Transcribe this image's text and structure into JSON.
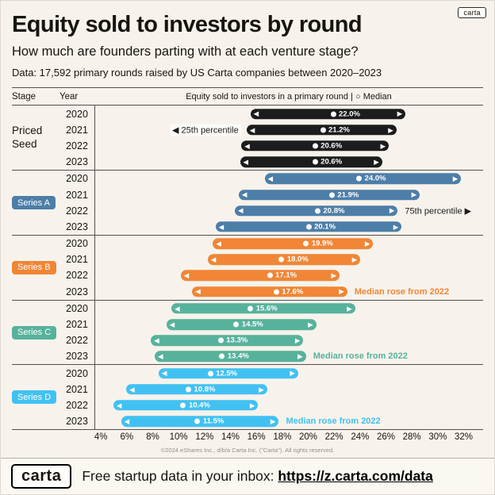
{
  "page": {
    "badge": "carta",
    "title": "Equity sold to investors by round",
    "subtitle": "How much are founders parting with at each venture stage?",
    "data_note": "Data: 17,592 primary rounds raised by US Carta companies between 2020–2023",
    "copyright": "©2024 eShares Inc., d/b/a Carta Inc. (\"Carta\"). All rights reserved.",
    "footer": {
      "logo": "carta",
      "prompt": "Free startup data in your inbox:",
      "link": "https://z.carta.com/data"
    }
  },
  "chart_data": {
    "type": "range-bar",
    "title": "Equity sold to investors by round",
    "subtitle": "How much are founders parting with at each venture stage?",
    "source": "Data: 17,592 primary rounds raised by US Carta companies between 2020–2023",
    "column_headers": {
      "stage": "Stage",
      "year": "Year",
      "legend": "Equity sold to investors in a primary round | ○ Median"
    },
    "x_axis": {
      "unit": "%",
      "min": 3.5,
      "max": 33.5,
      "ticks": [
        4,
        6,
        8,
        10,
        12,
        14,
        16,
        18,
        20,
        22,
        24,
        26,
        28,
        30,
        32
      ]
    },
    "groups": [
      {
        "stage": "Priced Seed",
        "pill": false,
        "color": "#1c1c1c",
        "rows": [
          {
            "year": "2020",
            "p25": 15.5,
            "p75": 27.5,
            "median": 22.0,
            "median_label": "22.0%"
          },
          {
            "year": "2021",
            "p25": 15.2,
            "p75": 26.8,
            "median": 21.2,
            "median_label": "21.2%",
            "note": {
              "text": "◀ 25th percentile",
              "side": "left",
              "bold": false,
              "color": "#1c1c1c"
            }
          },
          {
            "year": "2022",
            "p25": 14.8,
            "p75": 26.2,
            "median": 20.6,
            "median_label": "20.6%"
          },
          {
            "year": "2023",
            "p25": 14.7,
            "p75": 25.7,
            "median": 20.6,
            "median_label": "20.6%"
          }
        ]
      },
      {
        "stage": "Series A",
        "pill": true,
        "color": "#4d7ea8",
        "rows": [
          {
            "year": "2020",
            "p25": 16.6,
            "p75": 31.8,
            "median": 24.0,
            "median_label": "24.0%"
          },
          {
            "year": "2021",
            "p25": 14.6,
            "p75": 28.6,
            "median": 21.9,
            "median_label": "21.9%"
          },
          {
            "year": "2022",
            "p25": 14.3,
            "p75": 26.9,
            "median": 20.8,
            "median_label": "20.8%",
            "note": {
              "text": "75th percentile ▶",
              "side": "right",
              "bold": false,
              "color": "#1c1c1c"
            }
          },
          {
            "year": "2023",
            "p25": 12.8,
            "p75": 27.2,
            "median": 20.1,
            "median_label": "20.1%"
          }
        ]
      },
      {
        "stage": "Series B",
        "pill": true,
        "color": "#f08636",
        "rows": [
          {
            "year": "2020",
            "p25": 12.6,
            "p75": 25.0,
            "median": 19.9,
            "median_label": "19.9%"
          },
          {
            "year": "2021",
            "p25": 12.2,
            "p75": 24.0,
            "median": 18.0,
            "median_label": "18.0%"
          },
          {
            "year": "2022",
            "p25": 10.1,
            "p75": 22.4,
            "median": 17.1,
            "median_label": "17.1%"
          },
          {
            "year": "2023",
            "p25": 11.0,
            "p75": 23.0,
            "median": 17.6,
            "median_label": "17.6%",
            "note": {
              "text": "Median rose from 2022",
              "side": "right",
              "bold": true,
              "color": "#f08636"
            }
          }
        ]
      },
      {
        "stage": "Series C",
        "pill": true,
        "color": "#57b29c",
        "rows": [
          {
            "year": "2020",
            "p25": 9.4,
            "p75": 23.6,
            "median": 15.6,
            "median_label": "15.6%"
          },
          {
            "year": "2021",
            "p25": 9.0,
            "p75": 20.6,
            "median": 14.5,
            "median_label": "14.5%"
          },
          {
            "year": "2022",
            "p25": 7.8,
            "p75": 19.6,
            "median": 13.3,
            "median_label": "13.3%"
          },
          {
            "year": "2023",
            "p25": 8.1,
            "p75": 19.8,
            "median": 13.4,
            "median_label": "13.4%",
            "note": {
              "text": "Median rose from 2022",
              "side": "right",
              "bold": true,
              "color": "#57b29c"
            }
          }
        ]
      },
      {
        "stage": "Series D",
        "pill": true,
        "color": "#41c1f2",
        "rows": [
          {
            "year": "2020",
            "p25": 8.4,
            "p75": 19.2,
            "median": 12.5,
            "median_label": "12.5%"
          },
          {
            "year": "2021",
            "p25": 5.9,
            "p75": 16.8,
            "median": 10.8,
            "median_label": "10.8%"
          },
          {
            "year": "2022",
            "p25": 4.9,
            "p75": 16.1,
            "median": 10.4,
            "median_label": "10.4%"
          },
          {
            "year": "2023",
            "p25": 5.5,
            "p75": 17.7,
            "median": 11.5,
            "median_label": "11.5%",
            "note": {
              "text": "Median rose from 2022",
              "side": "right",
              "bold": true,
              "color": "#41c1f2"
            }
          }
        ]
      }
    ]
  }
}
